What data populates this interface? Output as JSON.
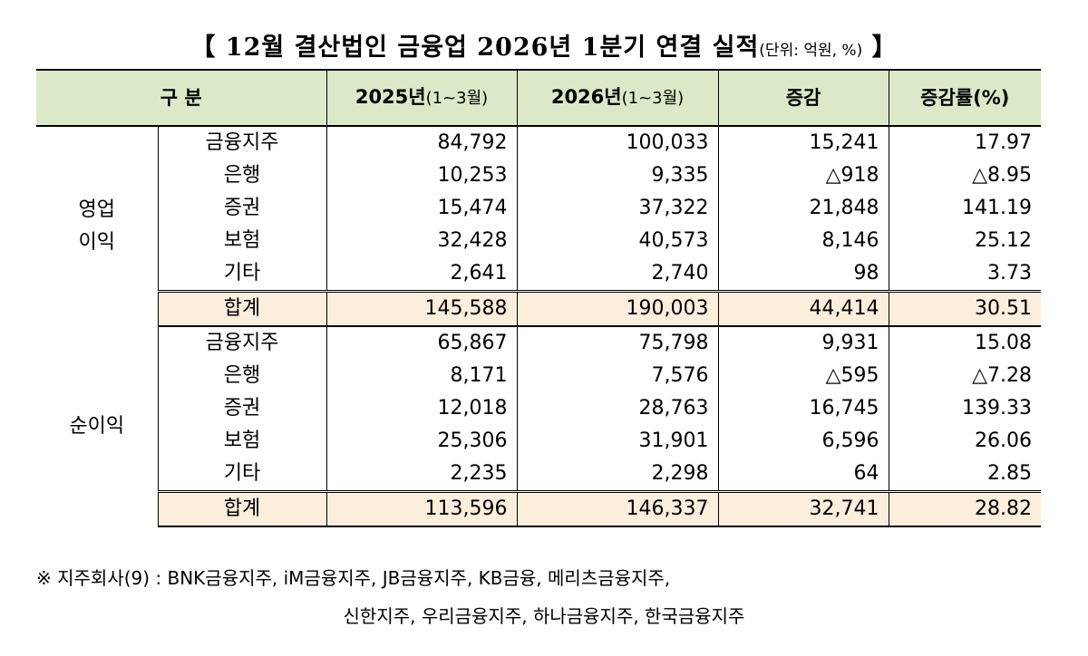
{
  "title": {
    "open_bracket": "【",
    "main": "12월 결산법인 금융업 2026년 1분기 연결 실적",
    "unit": "(단위: 억원, %)",
    "close_bracket": "】"
  },
  "table": {
    "headers": {
      "category": "구  분",
      "y2025": "2025년",
      "y2025_sub": "(1~3월)",
      "y2026": "2026년",
      "y2026_sub": "(1~3월)",
      "change": "증감",
      "rate": "증감률(%)"
    },
    "groups": [
      {
        "label_line1": "영업",
        "label_line2": "이익",
        "rows": [
          {
            "category": "금융지주",
            "y2025": "84,792",
            "y2026": "100,033",
            "change": "15,241",
            "rate": "17.97"
          },
          {
            "category": "은행",
            "y2025": "10,253",
            "y2026": "9,335",
            "change": "△918",
            "rate": "△8.95"
          },
          {
            "category": "증권",
            "y2025": "15,474",
            "y2026": "37,322",
            "change": "21,848",
            "rate": "141.19"
          },
          {
            "category": "보험",
            "y2025": "32,428",
            "y2026": "40,573",
            "change": "8,146",
            "rate": "25.12"
          },
          {
            "category": "기타",
            "y2025": "2,641",
            "y2026": "2,740",
            "change": "98",
            "rate": "3.73"
          },
          {
            "category": "합계",
            "y2025": "145,588",
            "y2026": "190,003",
            "change": "44,414",
            "rate": "30.51"
          }
        ]
      },
      {
        "label_line1": "순이익",
        "label_line2": "",
        "rows": [
          {
            "category": "금융지주",
            "y2025": "65,867",
            "y2026": "75,798",
            "change": "9,931",
            "rate": "15.08"
          },
          {
            "category": "은행",
            "y2025": "8,171",
            "y2026": "7,576",
            "change": "△595",
            "rate": "△7.28"
          },
          {
            "category": "증권",
            "y2025": "12,018",
            "y2026": "28,763",
            "change": "16,745",
            "rate": "139.33"
          },
          {
            "category": "보험",
            "y2025": "25,306",
            "y2026": "31,901",
            "change": "6,596",
            "rate": "26.06"
          },
          {
            "category": "기타",
            "y2025": "2,235",
            "y2026": "2,298",
            "change": "64",
            "rate": "2.85"
          },
          {
            "category": "합계",
            "y2025": "113,596",
            "y2026": "146,337",
            "change": "32,741",
            "rate": "28.82"
          }
        ]
      }
    ]
  },
  "note": {
    "line1": "※  지주회사(9)  :  BNK금융지주,  iM금융지주,  JB금융지주,  KB금융,  메리츠금융지주,",
    "line2": "신한지주,  우리금융지주,  하나금융지주,  한국금융지주"
  }
}
